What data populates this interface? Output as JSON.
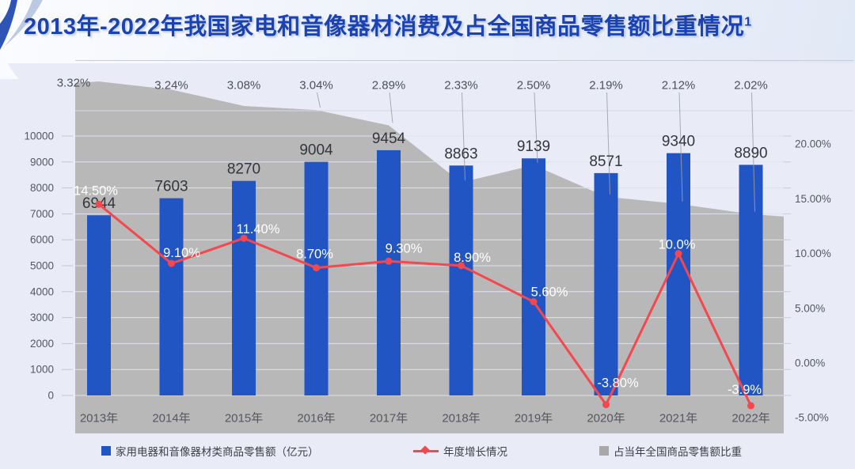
{
  "header": {
    "title": "2013年-2022年我国家电和音像器材消费及占全国商品零售额比重情况",
    "superscript": "1"
  },
  "chart_data": {
    "type": "combo",
    "categories": [
      "2013年",
      "2014年",
      "2015年",
      "2016年",
      "2017年",
      "2018年",
      "2019年",
      "2020年",
      "2021年",
      "2022年"
    ],
    "series": [
      {
        "name": "家用电器和音像器材类商品零售额（亿元）",
        "type": "bar",
        "color": "#2255c4",
        "values": [
          6944,
          7603,
          8270,
          9004,
          9454,
          8863,
          9139,
          8571,
          9340,
          8890
        ]
      },
      {
        "name": "年度增长情况",
        "type": "line",
        "color": "#f4474e",
        "values": [
          14.5,
          9.1,
          11.4,
          8.7,
          9.3,
          8.9,
          5.6,
          -3.8,
          10.0,
          -3.9
        ],
        "labels": [
          "14.50%",
          "9.10%",
          "11.40%",
          "8.70%",
          "9.30%",
          "8.90%",
          "5.60%",
          "-3.80%",
          "10.0%",
          "-3.9%"
        ]
      },
      {
        "name": "占当年全国商品零售额比重",
        "type": "area",
        "color": "#b8b8b8",
        "values": [
          3.32,
          3.24,
          3.08,
          3.04,
          2.89,
          2.33,
          2.5,
          2.19,
          2.12,
          2.02
        ],
        "labels": [
          "3.32%",
          "3.24%",
          "3.08%",
          "3.04%",
          "2.89%",
          "2.33%",
          "2.50%",
          "2.19%",
          "2.12%",
          "2.02%"
        ]
      }
    ],
    "left_axis": {
      "min": 0,
      "max": 10000,
      "ticks": [
        "10000",
        "9000",
        "8000",
        "7000",
        "6000",
        "5000",
        "4000",
        "3000",
        "2000",
        "1000",
        "0"
      ]
    },
    "right_axis": {
      "min": -5,
      "max": 20,
      "ticks": [
        "20.00%",
        "15.00%",
        "10.00%",
        "5.00%",
        "0.00%",
        "-5.00%"
      ]
    },
    "legend": {
      "items": [
        "家用电器和音像器材类商品零售额（亿元）",
        "年度增长情况",
        "占当年全国商品零售额比重"
      ],
      "position": "bottom"
    },
    "grid": true
  }
}
